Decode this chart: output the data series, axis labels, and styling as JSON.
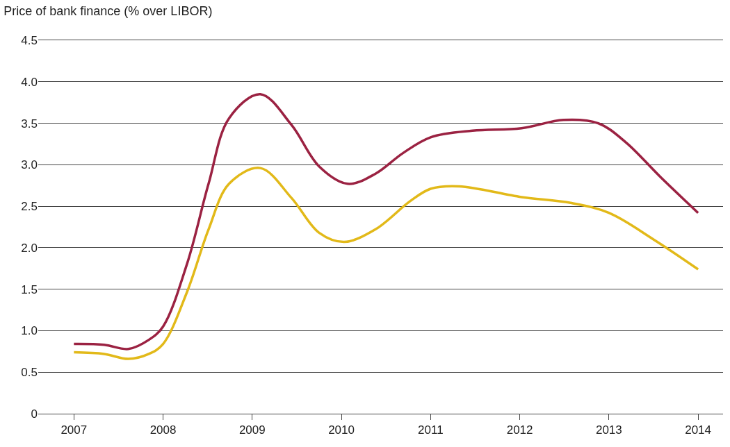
{
  "chart_data": {
    "type": "line",
    "title": "Price of bank finance (% over LIBOR)",
    "xlim": [
      2006.6,
      2014.28
    ],
    "xticks": [
      2007,
      2008,
      2009,
      2010,
      2011,
      2012,
      2013,
      2014
    ],
    "ylim": [
      0,
      4.5
    ],
    "yticks": [
      0,
      0.5,
      {
        "value": 1,
        "label": "1.0"
      },
      1.5,
      {
        "value": 2,
        "label": "2.0"
      },
      2.5,
      {
        "value": 3,
        "label": "3.0"
      },
      3.5,
      {
        "value": 4,
        "label": "4.0"
      },
      4.5
    ],
    "grid": "y",
    "marker": "none",
    "line_style": "solid",
    "series": [
      {
        "color": "#9b2242",
        "x": [
          2007,
          2007.34,
          2007.61,
          2007.84,
          2008,
          2008.27,
          2008.51,
          2008.74,
          2009.09,
          2009.44,
          2009.75,
          2010.07,
          2010.38,
          2010.69,
          2011,
          2011.47,
          2012.02,
          2012.49,
          2012.88,
          2013.19,
          2013.58,
          2014
        ],
        "values": [
          0.84,
          0.83,
          0.78,
          0.89,
          1.05,
          1.81,
          2.77,
          3.56,
          3.85,
          3.48,
          2.98,
          2.77,
          2.89,
          3.14,
          3.33,
          3.41,
          3.44,
          3.54,
          3.5,
          3.27,
          2.85,
          2.42
        ]
      },
      {
        "color": "#e2b919",
        "x": [
          2007,
          2007.34,
          2007.61,
          2007.84,
          2008,
          2008.27,
          2008.51,
          2008.74,
          2009.09,
          2009.44,
          2009.75,
          2010.03,
          2010.38,
          2010.77,
          2011,
          2011.32,
          2012.02,
          2012.57,
          2013,
          2013.5,
          2014
        ],
        "values": [
          0.74,
          0.72,
          0.66,
          0.72,
          0.84,
          1.47,
          2.22,
          2.77,
          2.96,
          2.6,
          2.18,
          2.07,
          2.22,
          2.56,
          2.71,
          2.74,
          2.61,
          2.54,
          2.42,
          2.1,
          1.74
        ]
      }
    ]
  }
}
